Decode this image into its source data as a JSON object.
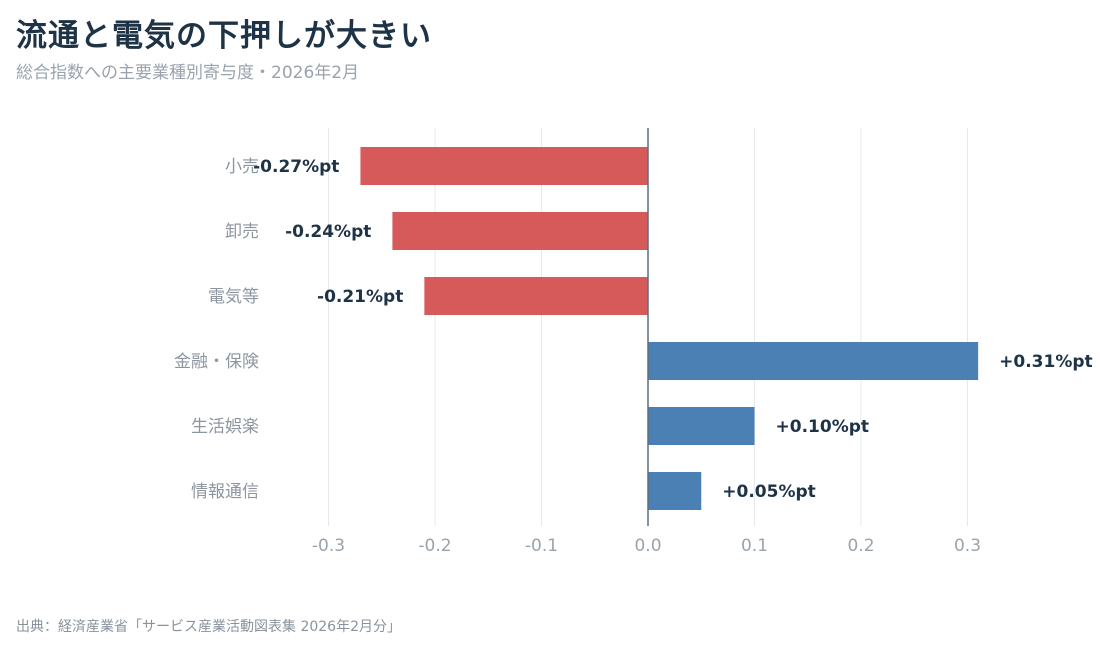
{
  "header": {
    "title": "流通と電気の下押しが大きい",
    "subtitle": "総合指数への主要業種別寄与度・2026年2月"
  },
  "footer": {
    "source": "出典：経済産業省「サービス産業活動図表集 2026年2月分」"
  },
  "colors": {
    "negative": "#d65a5a",
    "positive": "#4a80b4",
    "grid": "#e6e8eb",
    "zero_line": "#5b6e80"
  },
  "chart_data": {
    "type": "bar",
    "orientation": "horizontal",
    "categories": [
      "小売",
      "卸売",
      "電気等",
      "金融・保険",
      "生活娯楽",
      "情報通信"
    ],
    "values": [
      -0.27,
      -0.24,
      -0.21,
      0.31,
      0.1,
      0.05
    ],
    "value_labels": [
      "-0.27%pt",
      "-0.24%pt",
      "-0.21%pt",
      "+0.31%pt",
      "+0.10%pt",
      "+0.05%pt"
    ],
    "xlim": [
      -0.3,
      0.3
    ],
    "xticks": [
      -0.3,
      -0.2,
      -0.1,
      0.0,
      0.1,
      0.2,
      0.3
    ],
    "xtick_labels": [
      "-0.3",
      "-0.2",
      "-0.1",
      "0.0",
      "0.1",
      "0.2",
      "0.3"
    ],
    "grid": "vertical"
  }
}
